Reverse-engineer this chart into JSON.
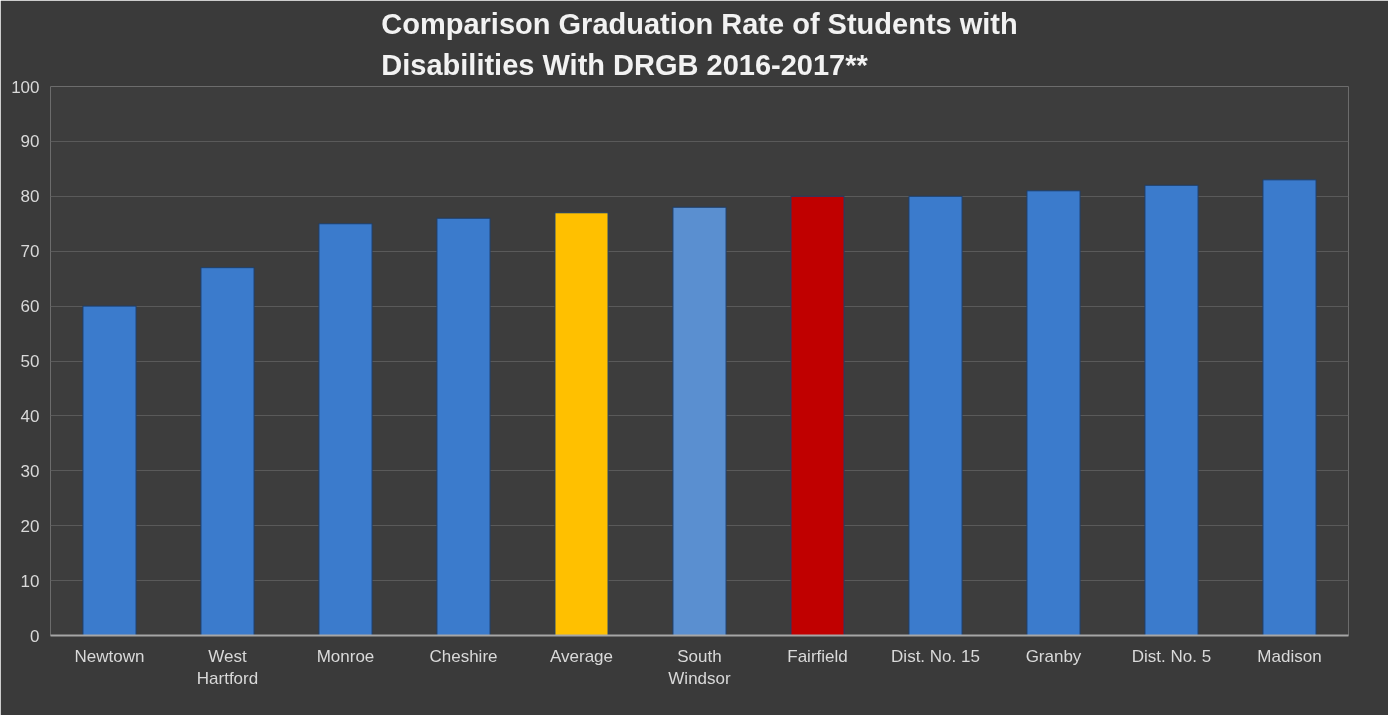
{
  "chart_data": {
    "type": "bar",
    "title": "Comparison Graduation Rate of Students with Disabilities With DRGB 2016-2017**",
    "categories": [
      "Newtown",
      "West Hartford",
      "Monroe",
      "Cheshire",
      "Average",
      "South Windsor",
      "Fairfield",
      "Dist. No. 15",
      "Granby",
      "Dist. No. 5",
      "Madison"
    ],
    "values": [
      60,
      67,
      75,
      76,
      77,
      78,
      80,
      80,
      81,
      82,
      83
    ],
    "colors": [
      "#3b7bcc",
      "#3b7bcc",
      "#3b7bcc",
      "#3b7bcc",
      "#ffc000",
      "#5a8fd0",
      "#c00000",
      "#3b7bcc",
      "#3b7bcc",
      "#3b7bcc",
      "#3b7bcc"
    ],
    "ylim": [
      0,
      100
    ],
    "yticks": [
      0,
      10,
      20,
      30,
      40,
      50,
      60,
      70,
      80,
      90,
      100
    ],
    "grid": "y"
  }
}
